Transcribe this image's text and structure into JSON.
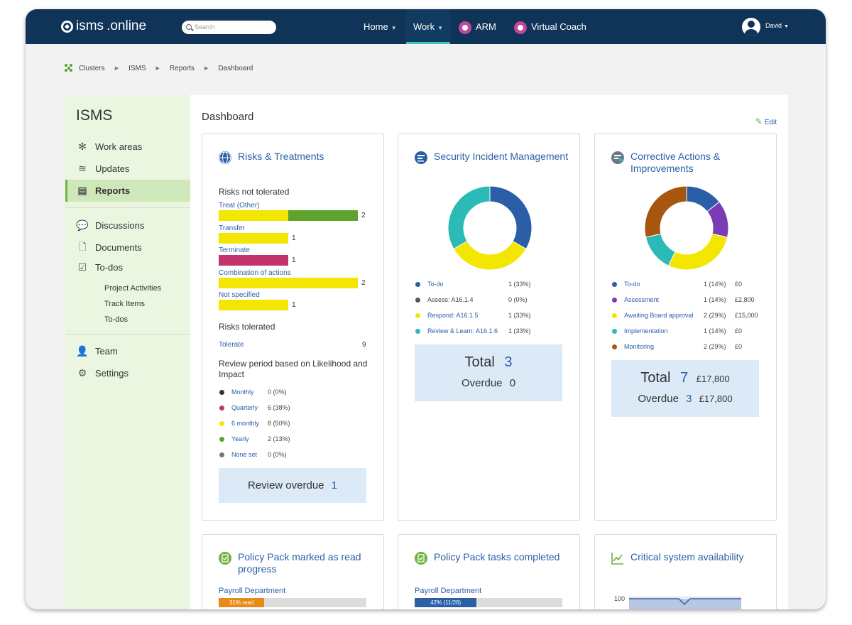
{
  "app": {
    "brand_light": "isms",
    "brand_bold": ".online",
    "search_placeholder": "Search",
    "nav": [
      {
        "label": "Home"
      },
      {
        "label": "Work"
      },
      {
        "label": "ARM"
      },
      {
        "label": "Virtual Coach"
      }
    ],
    "user": "David"
  },
  "breadcrumb": [
    "Clusters",
    "ISMS",
    "Reports",
    "Dashboard"
  ],
  "sidebar": {
    "title": "ISMS",
    "items": [
      {
        "label": "Work areas"
      },
      {
        "label": "Updates"
      },
      {
        "label": "Reports"
      },
      {
        "label": "Discussions"
      },
      {
        "label": "Documents"
      },
      {
        "label": "To-dos"
      },
      {
        "label": "Team"
      },
      {
        "label": "Settings"
      }
    ],
    "todo_subitems": [
      "Project Activities",
      "Track Items",
      "To-dos"
    ]
  },
  "main": {
    "title": "Dashboard",
    "edit_label": "Edit"
  },
  "risks_card": {
    "title": "Risks & Treatments",
    "not_tolerated_heading": "Risks not tolerated",
    "bars": [
      {
        "label": "Treat (Other)",
        "count": "2",
        "segments": [
          {
            "value": 1,
            "color": "#f3e600"
          },
          {
            "value": 1,
            "color": "#5ea32c"
          }
        ]
      },
      {
        "label": "Transfer",
        "count": "1",
        "segments": [
          {
            "value": 1,
            "color": "#f3e600"
          }
        ]
      },
      {
        "label": "Terminate",
        "count": "1",
        "segments": [
          {
            "value": 1,
            "color": "#c2336b"
          }
        ]
      },
      {
        "label": "Combination of actions",
        "count": "2",
        "segments": [
          {
            "value": 2,
            "color": "#f3e600"
          }
        ]
      },
      {
        "label": "Not specified",
        "count": "1",
        "segments": [
          {
            "value": 1,
            "color": "#f3e600"
          }
        ]
      }
    ],
    "bar_max": 2,
    "tolerated_heading": "Risks tolerated",
    "tolerate_label": "Tolerate",
    "tolerate_count": "9",
    "review_heading": "Review period based on Likelihood and Impact",
    "review_rows": [
      {
        "label": "Monthly",
        "value": "0 (0%)",
        "color": "#333333"
      },
      {
        "label": "Quarterly",
        "value": "6 (38%)",
        "color": "#c2336b"
      },
      {
        "label": "6 monthly",
        "value": "8 (50%)",
        "color": "#f3e600"
      },
      {
        "label": "Yearly",
        "value": "2 (13%)",
        "color": "#5ea32c"
      },
      {
        "label": "None set",
        "value": "0 (0%)",
        "color": "#777777"
      }
    ],
    "review_overdue_label": "Review overdue",
    "review_overdue_value": "1"
  },
  "incident_card": {
    "title": "Security Incident Management",
    "legend": [
      {
        "label": "To-do",
        "value": "1 (33%)",
        "color": "#2a5fa8",
        "link": true
      },
      {
        "label": "Assess: A16.1.4",
        "value": "0 (0%)",
        "color": "#555555",
        "link": false
      },
      {
        "label": "Respond: A16.1.5",
        "value": "1 (33%)",
        "color": "#f3e600",
        "link": true
      },
      {
        "label": "Review & Learn: A16.1.6",
        "value": "1 (33%)",
        "color": "#2bbab5",
        "link": true
      }
    ],
    "donut": [
      1,
      0,
      1,
      1
    ],
    "total_label": "Total",
    "total_value": "3",
    "overdue_label": "Overdue",
    "overdue_value": "0"
  },
  "corrective_card": {
    "title": "Corrective Actions & Improvements",
    "legend": [
      {
        "label": "To-do",
        "value": "1 (14%)",
        "amount": "£0",
        "color": "#2a5fa8"
      },
      {
        "label": "Assessment",
        "value": "1 (14%)",
        "amount": "£2,800",
        "color": "#7b3bb5"
      },
      {
        "label": "Awaiting Board approval",
        "value": "2 (29%)",
        "amount": "£15,000",
        "color": "#f3e600"
      },
      {
        "label": "Implementation",
        "value": "1 (14%)",
        "amount": "£0",
        "color": "#2bbab5"
      },
      {
        "label": "Monitoring",
        "value": "2 (29%)",
        "amount": "£0",
        "color": "#a6560f"
      }
    ],
    "donut": [
      1,
      1,
      2,
      1,
      2
    ],
    "total_label": "Total",
    "total_value": "7",
    "total_amount": "£17,800",
    "overdue_label": "Overdue",
    "overdue_value": "3",
    "overdue_amount": "£17,800"
  },
  "policy_read_card": {
    "title": "Policy Pack marked as read progress",
    "dept": "Payroll Department",
    "progress_label": "31% read",
    "progress_fraction": 0.31,
    "color": "#e88a1a"
  },
  "policy_tasks_card": {
    "title": "Policy Pack tasks completed",
    "dept": "Payroll Department",
    "progress_label": "42% (11/26)",
    "progress_fraction": 0.42,
    "color": "#2a5fa8"
  },
  "availability_card": {
    "title": "Critical system availability",
    "y_tick": "100"
  }
}
